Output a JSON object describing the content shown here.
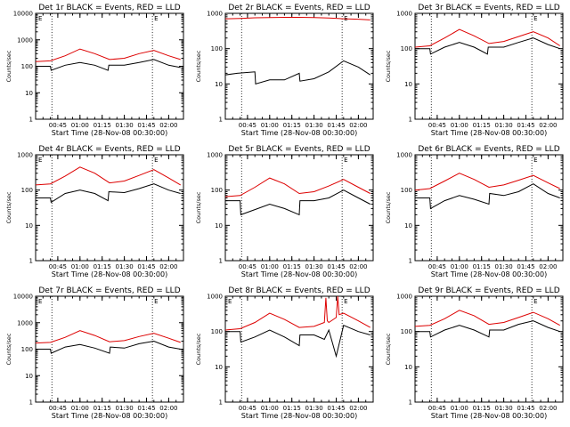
{
  "colors": {
    "events": "#000000",
    "lld": "#dd0000",
    "background": "#ffffff"
  },
  "panels": [
    {
      "title": "Det 1r BLACK = Events, RED = LLD",
      "ymax_label": "10000",
      "ymax_exp": 4,
      "xlabel": "Start Time (28-Nov-08 00:30:00)",
      "ylabel": "Counts/sec",
      "marker_left": "E",
      "marker_right": "E"
    },
    {
      "title": "Det 2r BLACK = Events, RED = LLD",
      "ymax_label": "1000",
      "ymax_exp": 3,
      "xlabel": "Start Time (28-Nov-08 00:30:00)",
      "ylabel": "Counts/sec",
      "marker_left": "",
      "marker_right": "E"
    },
    {
      "title": "Det 3r BLACK = Events, RED = LLD",
      "ymax_label": "1000",
      "ymax_exp": 3,
      "xlabel": "Start Time (28-Nov-08 00:30:00)",
      "ylabel": "Counts/sec",
      "marker_left": "",
      "marker_right": "E"
    },
    {
      "title": "Det 4r BLACK = Events, RED = LLD",
      "ymax_label": "1000",
      "ymax_exp": 3,
      "xlabel": "Start Time (28-Nov-08 00:30:00)",
      "ylabel": "Counts/sec",
      "marker_left": "E",
      "marker_right": "E"
    },
    {
      "title": "Det 5r BLACK = Events, RED = LLD",
      "ymax_label": "1000",
      "ymax_exp": 3,
      "xlabel": "Start Time (28-Nov-08 00:30:00)",
      "ylabel": "Counts/sec",
      "marker_left": "",
      "marker_right": "E"
    },
    {
      "title": "Det 6r BLACK = Events, RED = LLD",
      "ymax_label": "1000",
      "ymax_exp": 3,
      "xlabel": "Start Time (28-Nov-08 00:30:00)",
      "ylabel": "Counts/sec",
      "marker_left": "",
      "marker_right": "E"
    },
    {
      "title": "Det 7r BLACK = Events, RED = LLD",
      "ymax_label": "10000",
      "ymax_exp": 4,
      "xlabel": "Start Time (28-Nov-08 00:30:00)",
      "ylabel": "Counts/sec",
      "marker_left": "E",
      "marker_right": "E"
    },
    {
      "title": "Det 8r BLACK = Events, RED = LLD",
      "ymax_label": "1000",
      "ymax_exp": 3,
      "xlabel": "Start Time (28-Nov-08 00:30:00)",
      "ylabel": "Counts/sec",
      "marker_left": "E",
      "marker_right": "E"
    },
    {
      "title": "Det 9r BLACK = Events, RED = LLD",
      "ymax_label": "1000",
      "ymax_exp": 3,
      "xlabel": "Start Time (28-Nov-08 00:30:00)",
      "ylabel": "Counts/sec",
      "marker_left": "",
      "marker_right": "E"
    }
  ],
  "chart_data": {
    "type": "line",
    "scale_y": "log",
    "grid": false,
    "x_tick_labels": [
      "00:45",
      "01:00",
      "01:15",
      "01:30",
      "01:45",
      "02:00"
    ],
    "x_tick_minutes": [
      45,
      60,
      75,
      90,
      105,
      120
    ],
    "xlim_minutes": [
      30,
      130
    ],
    "dotted_lines_minutes": [
      41,
      109
    ],
    "y_tick_labels_4": [
      "1",
      "10",
      "100",
      "1000",
      "10000"
    ],
    "y_tick_labels_3": [
      "1",
      "10",
      "100",
      "1000"
    ],
    "series": [
      {
        "name": "Events",
        "color": "#000000",
        "panels": [
          {
            "x": [
              30,
              40,
              40.5,
              50,
              60,
              70,
              79,
              79.5,
              90,
              100,
              110,
              120,
              128
            ],
            "y": [
              100,
              100,
              70,
              110,
              140,
              110,
              70,
              110,
              110,
              140,
              180,
              110,
              90
            ]
          },
          {
            "x": [
              30,
              38,
              50,
              50.5,
              60,
              70,
              80,
              80.5,
              90,
              100,
              110,
              120,
              128
            ],
            "y": [
              18,
              20,
              22,
              10,
              13,
              13,
              20,
              12,
              14,
              22,
              45,
              30,
              18
            ]
          },
          {
            "x": [
              30,
              40,
              40.5,
              50,
              60,
              70,
              79,
              79.5,
              90,
              100,
              110,
              120,
              128
            ],
            "y": [
              100,
              100,
              70,
              110,
              150,
              110,
              70,
              110,
              110,
              150,
              200,
              130,
              100
            ]
          },
          {
            "x": [
              30,
              40,
              40.5,
              50,
              60,
              70,
              79,
              79.5,
              90,
              100,
              110,
              120,
              128
            ],
            "y": [
              60,
              60,
              45,
              80,
              100,
              80,
              50,
              90,
              85,
              110,
              150,
              100,
              80
            ]
          },
          {
            "x": [
              30,
              40,
              40.5,
              50,
              60,
              70,
              80,
              80.5,
              90,
              100,
              110,
              120,
              128
            ],
            "y": [
              50,
              50,
              20,
              28,
              40,
              30,
              20,
              50,
              50,
              60,
              100,
              60,
              40
            ]
          },
          {
            "x": [
              30,
              40,
              40.5,
              50,
              60,
              70,
              80,
              80.5,
              90,
              100,
              110,
              120,
              128
            ],
            "y": [
              60,
              60,
              30,
              50,
              70,
              55,
              40,
              80,
              70,
              90,
              150,
              80,
              60
            ]
          },
          {
            "x": [
              30,
              40,
              40.5,
              50,
              60,
              70,
              80,
              80.5,
              90,
              100,
              110,
              120,
              128
            ],
            "y": [
              100,
              100,
              70,
              120,
              150,
              110,
              70,
              120,
              110,
              160,
              200,
              120,
              100
            ]
          },
          {
            "x": [
              30,
              40,
              40.5,
              50,
              60,
              70,
              80,
              80.5,
              90,
              97,
              100,
              105,
              110,
              120,
              128
            ],
            "y": [
              100,
              100,
              50,
              70,
              110,
              70,
              40,
              80,
              80,
              60,
              110,
              20,
              150,
              100,
              80
            ]
          },
          {
            "x": [
              30,
              40,
              40.5,
              50,
              60,
              70,
              80,
              80.5,
              90,
              100,
              110,
              120,
              128
            ],
            "y": [
              100,
              100,
              70,
              110,
              150,
              110,
              70,
              110,
              110,
              160,
              200,
              130,
              100
            ]
          }
        ]
      },
      {
        "name": "LLD",
        "color": "#dd0000",
        "panels": [
          {
            "x": [
              30,
              40,
              50,
              60,
              70,
              80,
              90,
              100,
              110,
              120,
              128
            ],
            "y": [
              150,
              160,
              250,
              450,
              300,
              180,
              200,
              300,
              400,
              250,
              180
            ]
          },
          {
            "x": [
              30,
              40,
              50,
              60,
              70,
              80,
              90,
              100,
              110,
              120,
              128
            ],
            "y": [
              700,
              720,
              750,
              760,
              770,
              770,
              760,
              740,
              700,
              680,
              650
            ]
          },
          {
            "x": [
              30,
              40,
              50,
              60,
              70,
              80,
              90,
              100,
              110,
              120,
              128
            ],
            "y": [
              110,
              120,
              200,
              350,
              230,
              140,
              160,
              220,
              300,
              200,
              120
            ]
          },
          {
            "x": [
              30,
              40,
              50,
              60,
              70,
              80,
              90,
              100,
              110,
              120,
              128
            ],
            "y": [
              140,
              150,
              250,
              450,
              300,
              160,
              180,
              260,
              380,
              220,
              140
            ]
          },
          {
            "x": [
              30,
              40,
              50,
              60,
              70,
              80,
              90,
              100,
              110,
              120,
              128
            ],
            "y": [
              65,
              70,
              120,
              220,
              150,
              80,
              90,
              130,
              200,
              120,
              80
            ]
          },
          {
            "x": [
              30,
              40,
              50,
              60,
              70,
              80,
              90,
              100,
              110,
              120,
              128
            ],
            "y": [
              100,
              110,
              180,
              300,
              200,
              120,
              140,
              190,
              260,
              160,
              110
            ]
          },
          {
            "x": [
              30,
              40,
              50,
              60,
              70,
              80,
              90,
              100,
              110,
              120,
              128
            ],
            "y": [
              170,
              180,
              280,
              500,
              330,
              190,
              210,
              300,
              400,
              260,
              180
            ]
          },
          {
            "x": [
              30,
              40,
              50,
              60,
              70,
              80,
              90,
              97,
              98,
              99,
              100,
              105,
              106,
              107,
              110,
              120,
              128
            ],
            "y": [
              110,
              120,
              180,
              330,
              220,
              130,
              140,
              180,
              900,
              200,
              180,
              250,
              1000,
              300,
              330,
              200,
              130
            ]
          },
          {
            "x": [
              30,
              40,
              50,
              60,
              70,
              80,
              90,
              100,
              110,
              120,
              128
            ],
            "y": [
              140,
              150,
              230,
              400,
              280,
              160,
              180,
              250,
              350,
              230,
              150
            ]
          }
        ]
      }
    ]
  }
}
